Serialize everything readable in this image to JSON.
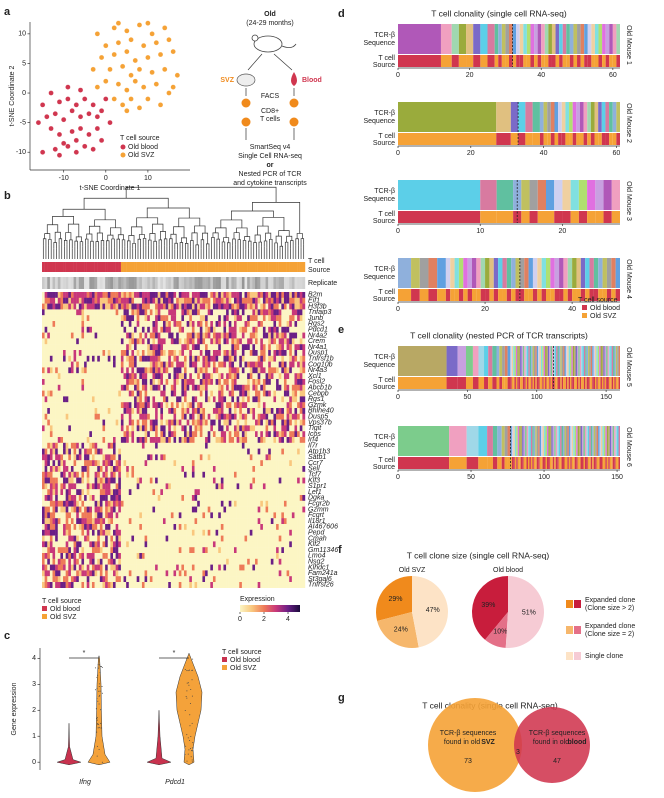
{
  "chart_data": [
    {
      "type": "scatter",
      "panel": "a",
      "xlabel": "t-SNE Coordinate 1",
      "ylabel": "t-SNE Coordinate 2",
      "xlim": [
        -18,
        20
      ],
      "ylim": [
        -13,
        12
      ],
      "xticks": [
        -10,
        0,
        10
      ],
      "yticks": [
        -10,
        -5,
        0,
        5,
        10
      ],
      "legend_title": "T cell source",
      "legend": "bottom-right",
      "series": [
        {
          "name": "Old blood",
          "color": "#d0364f",
          "x": [
            -15,
            -12,
            -10,
            -9,
            -7,
            -5,
            -3,
            -13,
            -11,
            -8,
            -6,
            -4,
            -2,
            -14,
            -12,
            -10,
            -8,
            -6,
            -4,
            -2,
            -15,
            -11,
            -9,
            -7,
            -5,
            -3,
            -1,
            0,
            -13,
            -9,
            -6,
            -16,
            -11,
            -7,
            1,
            -1
          ],
          "y": [
            -10,
            -9.5,
            -8.5,
            -9,
            -8,
            -9,
            -9.5,
            -6,
            -7,
            -6.5,
            -6,
            -7,
            -6,
            -4,
            -3.5,
            -4.5,
            -3,
            -4,
            -3.5,
            -4,
            -2,
            -1.5,
            -1,
            -2,
            -1,
            -2,
            -3,
            -1,
            0,
            1,
            0.5,
            -5,
            -10.5,
            -10,
            -5,
            -8
          ]
        },
        {
          "name": "Old SVZ",
          "color": "#f5a236",
          "x": [
            -2,
            2,
            5,
            8,
            11,
            14,
            0,
            3,
            6,
            9,
            12,
            15,
            -1,
            2,
            5,
            7,
            10,
            13,
            16,
            1,
            4,
            6,
            8,
            11,
            14,
            17,
            0,
            3,
            5,
            7,
            9,
            12,
            15,
            2,
            4,
            6,
            8,
            10,
            13,
            -3,
            3,
            10,
            16,
            5,
            -2
          ],
          "y": [
            10,
            11,
            10.5,
            11.5,
            10,
            11,
            8,
            8.5,
            9,
            8,
            8.5,
            9,
            6,
            6.5,
            7,
            5.5,
            6,
            6.5,
            7,
            4,
            4.5,
            3,
            4,
            3.5,
            4,
            3,
            2,
            1.5,
            0.5,
            2,
            1,
            1.5,
            0,
            -1,
            -2,
            -1,
            -2.5,
            -1,
            -2,
            4,
            11.8,
            11.8,
            1,
            -3,
            1
          ]
        }
      ]
    },
    {
      "type": "violin",
      "panel": "c",
      "ylabel": "Gene expression",
      "categories": [
        "Ifng",
        "Pdcd1"
      ],
      "ylim": [
        -0.3,
        4.4
      ],
      "yticks": [
        0,
        1,
        2,
        3,
        4
      ],
      "significance": [
        "*",
        "*"
      ],
      "legend_title": "T cell source",
      "series": [
        {
          "name": "Old blood",
          "color": "#c8324e"
        },
        {
          "name": "Old SVZ",
          "color": "#f4a23a"
        }
      ]
    },
    {
      "type": "clonality",
      "panel": "d",
      "title": "T cell clonality (single cell RNA-seq)",
      "row_labels": [
        "TCR-β",
        "Sequence",
        "T cell",
        "Source"
      ],
      "legend_title": "T cell source",
      "sources": [
        {
          "name": "Old blood",
          "color": "#d0364f"
        },
        {
          "name": "Old SVZ",
          "color": "#f5a236"
        }
      ],
      "palette": [
        "#b058b8",
        "#f0a0c0",
        "#a0d8b0",
        "#9aab3c",
        "#e0c080",
        "#7a6ac8",
        "#5ccfe8",
        "#d87aa0",
        "#60c0a0",
        "#8fb0dc",
        "#c0c060",
        "#a0a0a0",
        "#e08060",
        "#60a0e0",
        "#d0d0f0",
        "#f0d0a0",
        "#80e0e0",
        "#b0e070",
        "#e070e0",
        "#c8a0e0"
      ],
      "mice": [
        {
          "name": "Old Mouse 1",
          "xlim": [
            0,
            62
          ],
          "xticks": [
            0,
            20,
            40,
            60
          ],
          "divider": 32,
          "clone_sizes": [
            12,
            3,
            2,
            2,
            2,
            2,
            2,
            2,
            1,
            1,
            1,
            1,
            1,
            1,
            1,
            1,
            1,
            1,
            1,
            1,
            1,
            1,
            1,
            1,
            1,
            1,
            1,
            1,
            1,
            1,
            1,
            1,
            1,
            1,
            1,
            1,
            1,
            1,
            1,
            1,
            1,
            1,
            1
          ],
          "clone_sources": [
            0,
            1,
            0,
            1,
            1,
            0,
            1,
            0,
            1,
            0,
            1,
            1,
            0,
            1,
            0,
            0,
            1,
            1,
            0,
            1,
            0,
            1,
            1,
            0,
            0,
            1,
            0,
            1,
            1,
            0,
            1,
            0,
            1,
            0,
            0,
            1,
            1,
            0,
            1,
            0,
            1,
            1,
            0
          ]
        },
        {
          "name": "Old Mouse 2",
          "xlim": [
            0,
            61
          ],
          "xticks": [
            0,
            20,
            40,
            60
          ],
          "divider": 33,
          "clone_sizes": [
            27,
            4,
            2,
            2,
            2,
            2,
            1,
            1,
            1,
            1,
            1,
            1,
            1,
            1,
            1,
            1,
            1,
            1,
            1,
            1,
            1,
            1,
            1,
            1,
            1,
            1,
            1,
            1
          ],
          "clone_sources": [
            1,
            0,
            1,
            0,
            1,
            1,
            0,
            1,
            1,
            0,
            1,
            0,
            0,
            1,
            1,
            0,
            1,
            1,
            0,
            1,
            0,
            1,
            1,
            0,
            0,
            1,
            1,
            0
          ]
        },
        {
          "name": "Old Mouse 3",
          "xlim": [
            0,
            27
          ],
          "xticks": [
            0,
            10,
            20
          ],
          "divider": 14.5,
          "clone_sizes": [
            10,
            2,
            2,
            1,
            1,
            1,
            1,
            1,
            1,
            1,
            1,
            1,
            1,
            1,
            1,
            1
          ],
          "clone_sources": [
            0,
            1,
            1,
            0,
            1,
            0,
            1,
            1,
            0,
            0,
            1,
            0,
            1,
            1,
            0,
            1
          ]
        },
        {
          "name": "Old Mouse 4",
          "xlim": [
            0,
            51
          ],
          "xticks": [
            0,
            20,
            40
          ],
          "divider": 28,
          "clone_sizes": [
            3,
            2,
            2,
            2,
            2,
            1,
            1,
            1,
            1,
            1,
            1,
            1,
            1,
            1,
            1,
            1,
            1,
            1,
            1,
            1,
            1,
            1,
            1,
            1,
            1,
            1,
            1,
            1,
            1,
            1,
            1,
            1,
            1,
            1,
            1,
            1,
            1,
            1,
            1,
            1,
            1,
            1,
            1,
            1,
            1
          ],
          "clone_sources": [
            1,
            0,
            1,
            0,
            1,
            0,
            1,
            1,
            0,
            1,
            0,
            1,
            1,
            0,
            0,
            1,
            0,
            1,
            1,
            0,
            1,
            0,
            0,
            1,
            1,
            0,
            1,
            0,
            1,
            1,
            0,
            0,
            1,
            0,
            1,
            1,
            0,
            1,
            0,
            0,
            1,
            1,
            0,
            1,
            0
          ]
        }
      ]
    },
    {
      "type": "clonality",
      "panel": "e",
      "title": "T cell clonality (nested PCR of TCR transcripts)",
      "row_labels": [
        "TCR-β",
        "Sequence",
        "T cell",
        "Source"
      ],
      "sources": [
        {
          "name": "Old blood",
          "color": "#d0364f"
        },
        {
          "name": "Old SVZ",
          "color": "#f5a236"
        }
      ],
      "palette": [
        "#b8a864",
        "#7a6ac8",
        "#c8a0e0",
        "#7ccc8c",
        "#f0a0c0",
        "#a0d8e8",
        "#5ccfe8",
        "#d87aa0",
        "#60c0a0",
        "#8fb0dc",
        "#c0c060",
        "#a0a0a0",
        "#e08060",
        "#60a0e0",
        "#d0d0f0",
        "#f0d0a0",
        "#80e0e0",
        "#b0e070",
        "#e070e0",
        "#9aab3c"
      ],
      "mice": [
        {
          "name": "Old Mouse 5",
          "xlim": [
            0,
            160
          ],
          "xticks": [
            0,
            50,
            100,
            150
          ],
          "divider": 112,
          "clone_sizes": [
            35,
            8,
            6,
            5,
            4,
            4,
            3,
            3,
            3,
            2,
            2,
            2,
            2,
            2,
            1,
            1,
            1,
            1,
            1,
            1,
            1,
            1,
            1,
            1,
            1,
            1,
            1,
            1,
            1,
            1,
            1,
            1,
            1,
            1,
            1,
            1,
            1,
            1,
            1,
            1,
            1,
            1,
            1,
            1,
            1,
            1,
            1,
            1,
            1,
            1,
            1,
            1,
            1,
            1,
            1,
            1,
            1,
            1,
            1,
            1,
            1,
            1,
            1,
            1,
            1,
            1,
            1,
            1,
            1,
            1,
            1,
            1,
            1,
            1,
            1,
            1,
            1,
            1,
            1,
            1,
            1,
            1,
            1,
            1,
            1,
            1,
            1,
            1,
            1,
            1,
            1,
            1,
            1
          ],
          "clone_sources": [
            1,
            0,
            0,
            1,
            0,
            1,
            0,
            1,
            0,
            1,
            0,
            1,
            1,
            0,
            0,
            1,
            1,
            0,
            1,
            0,
            0,
            1,
            1,
            0,
            0,
            1,
            0,
            1,
            1,
            0,
            1,
            0,
            1,
            0,
            0,
            1,
            1,
            0,
            1,
            0,
            1,
            1,
            0,
            1,
            0,
            0,
            1,
            1,
            0,
            0,
            1,
            0,
            1,
            1,
            0,
            1,
            0,
            1,
            0,
            0,
            1,
            1,
            0,
            1,
            0,
            1,
            1,
            0,
            1,
            0,
            0,
            1,
            1,
            0,
            0,
            1,
            0,
            1,
            1,
            0,
            1,
            0,
            1,
            0,
            0,
            1,
            1,
            0,
            1,
            0,
            1,
            1,
            0
          ]
        },
        {
          "name": "Old Mouse 6",
          "xlim": [
            0,
            152
          ],
          "xticks": [
            0,
            50,
            100,
            150
          ],
          "divider": 77,
          "clone_sizes": [
            35,
            12,
            8,
            6,
            4,
            3,
            3,
            2,
            2,
            2,
            1,
            1,
            1,
            1,
            1,
            1,
            1,
            1,
            1,
            1,
            1,
            1,
            1,
            1,
            1,
            1,
            1,
            1,
            1,
            1,
            1,
            1,
            1,
            1,
            1,
            1,
            1,
            1,
            1,
            1,
            1,
            1,
            1,
            1,
            1,
            1,
            1,
            1,
            1,
            1,
            1,
            1,
            1,
            1,
            1,
            1,
            1,
            1,
            1,
            1,
            1,
            1,
            1,
            1,
            1,
            1,
            1,
            1,
            1,
            1,
            1,
            1,
            1,
            1,
            1,
            1,
            1,
            1,
            1,
            1,
            1,
            1,
            1,
            1,
            1
          ],
          "clone_sources": [
            0,
            1,
            0,
            1,
            1,
            0,
            1,
            0,
            1,
            1,
            1,
            0,
            0,
            1,
            0,
            1,
            1,
            0,
            0,
            1,
            1,
            0,
            1,
            0,
            1,
            0,
            1,
            1,
            0,
            0,
            1,
            1,
            0,
            0,
            1,
            0,
            0,
            1,
            1,
            0,
            1,
            0,
            0,
            1,
            1,
            0,
            0,
            1,
            1,
            0,
            1,
            0,
            1,
            1,
            0,
            0,
            1,
            1,
            0,
            0,
            1,
            0,
            0,
            1,
            1,
            0,
            1,
            0,
            0,
            1,
            1,
            0,
            0,
            1,
            1,
            0,
            1,
            0,
            1,
            1,
            0,
            0,
            1,
            1,
            0
          ]
        }
      ]
    },
    {
      "type": "pie",
      "panel": "f",
      "title": "T cell clone size (single cell RNA-seq)",
      "legend": [
        [
          "Expanded clone",
          "(Clone size > 2)"
        ],
        [
          "Expanded clone",
          "(Clone size = 2)"
        ],
        [
          "Single clone"
        ]
      ],
      "pies": [
        {
          "name": "Old SVZ",
          "values": [
            29,
            24,
            47
          ],
          "value_labels": [
            "29%",
            "24%",
            "47%"
          ],
          "colors": [
            "#f08a1c",
            "#f6b76c",
            "#fde3c6"
          ]
        },
        {
          "name": "Old blood",
          "values": [
            39,
            10,
            51
          ],
          "value_labels": [
            "39%",
            "10%",
            "51%"
          ],
          "colors": [
            "#c81d3c",
            "#e47088",
            "#f6cbd4"
          ]
        }
      ]
    },
    {
      "type": "venn",
      "panel": "g",
      "title": "T cell clonality (single cell RNA-seq)",
      "sets": [
        {
          "lines": [
            "TCR-β sequences",
            "found in old",
            "SVZ"
          ],
          "color": "#f5a236",
          "value": 73
        },
        {
          "lines": [
            "TCR-β sequences",
            "found in old",
            "blood"
          ],
          "color": "#d0364f",
          "value": 47
        }
      ],
      "overlap": 3
    }
  ],
  "scheme": {
    "title": "Old",
    "subtitle": "(24-29 months)",
    "svz": "SVZ",
    "blood": "Blood",
    "facs": "FACS",
    "cells": [
      "CD8+",
      "T cells"
    ],
    "method1": [
      "SmartSeq v4",
      "Single Cell RNA-seq"
    ],
    "or": "or",
    "method2": [
      "Nested PCR of TCR",
      "and cytokine transcripts"
    ]
  },
  "heatmap": {
    "panel": "b",
    "row_labels": [
      "T cell",
      "Source",
      "Replicate"
    ],
    "genes": [
      "B2m",
      "Eif1",
      "H3f3b",
      "Tnfaip3",
      "Junb",
      "Rgs2",
      "Pdcd1",
      "Nr4a2",
      "Crem",
      "Nr4a1",
      "Dusp1",
      "Tnfrsf1b",
      "Cog10b",
      "Nr4a3",
      "Xcl1",
      "Fosl2",
      "Abcb1b",
      "Cebpb",
      "Rgs1",
      "Gzmk",
      "Bhlhe40",
      "Dusp5",
      "Vps37b",
      "Tigit",
      "Icos",
      "Irf4",
      "Il7r",
      "Atp1b3",
      "Satb1",
      "Ccr7",
      "Sell",
      "Tcf7",
      "Klf3",
      "S1pr1",
      "Lef1",
      "Dgka",
      "Fcgr2b",
      "Gzmm",
      "Fcgrt",
      "Il18r1",
      "AI467606",
      "Pepd",
      "Cmah",
      "Klf2",
      "Gm11346",
      "Lmo4",
      "Nsg2",
      "Klhdc1",
      "Fam241a",
      "St3gal6",
      "Tnfrsf26"
    ],
    "legend_title": "Expression",
    "legend_lim": [
      0,
      5
    ],
    "legend_ticks": [
      0,
      2,
      4
    ],
    "source_legend": {
      "title": "T cell source",
      "names": [
        "Old blood",
        "Old SVZ"
      ],
      "colors": [
        "#d0364f",
        "#f5a236"
      ]
    }
  }
}
